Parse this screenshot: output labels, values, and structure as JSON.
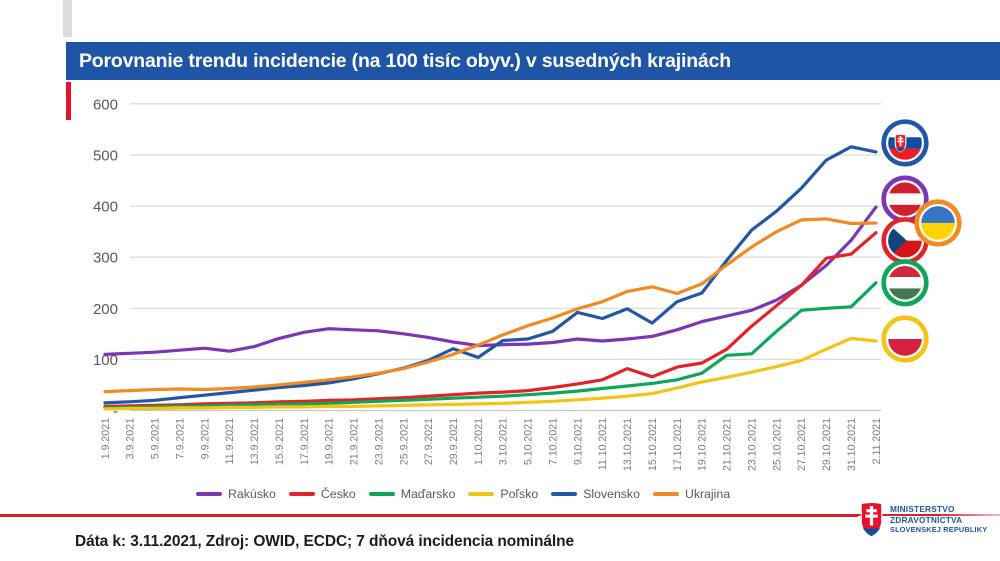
{
  "title": "Porovnanie trendu incidencie (na 100 tisíc obyv.) v susedných krajinách",
  "footer": {
    "source_note": "Dáta k: 3.11.2021, Zdroj: OWID, ECDC; 7 dňová incidencia nominálne"
  },
  "ministry_logo": {
    "line1": "MINISTERSTVO",
    "line2": "ZDRAVOTNÍCTVA",
    "line3": "SLOVENSKEJ REPUBLIKY",
    "emblem": "slovak-coat-of-arms"
  },
  "colors": {
    "title_bar": "#1F55A6",
    "accent_red": "#E8112D",
    "rule_red": "#D8202C",
    "gridline": "#D9D9D9",
    "axis_label": "#595959",
    "xtick_label": "#7F7F7F"
  },
  "chart_data": {
    "type": "line",
    "x": [
      "1.9.2021",
      "3.9.2021",
      "5.9.2021",
      "7.9.2021",
      "9.9.2021",
      "11.9.2021",
      "13.9.2021",
      "15.9.2021",
      "17.9.2021",
      "19.9.2021",
      "21.9.2021",
      "23.9.2021",
      "25.9.2021",
      "27.9.2021",
      "29.9.2021",
      "1.10.2021",
      "3.10.2021",
      "5.10.2021",
      "7.10.2021",
      "9.10.2021",
      "11.10.2021",
      "13.10.2021",
      "15.10.2021",
      "17.10.2021",
      "19.10.2021",
      "21.10.2021",
      "23.10.2021",
      "25.10.2021",
      "27.10.2021",
      "29.10.2021",
      "31.10.2021",
      "2.11.2021"
    ],
    "series": [
      {
        "name": "Rakúsko",
        "color": "#7C35B5",
        "flag": "austria",
        "values": [
          110,
          112,
          114,
          118,
          122,
          116,
          125,
          141,
          153,
          160,
          158,
          156,
          150,
          143,
          134,
          127,
          129,
          130,
          133,
          140,
          136,
          140,
          145,
          158,
          174,
          185,
          196,
          216,
          245,
          284,
          333,
          398
        ]
      },
      {
        "name": "Česko",
        "color": "#E32328",
        "flag": "czechia",
        "values": [
          8,
          9,
          10,
          11,
          13,
          14,
          15,
          17,
          18,
          20,
          21,
          23,
          25,
          28,
          31,
          34,
          36,
          39,
          45,
          52,
          60,
          82,
          66,
          85,
          93,
          120,
          165,
          205,
          245,
          298,
          306,
          348
        ]
      },
      {
        "name": "Maďarsko",
        "color": "#0EA75A",
        "flag": "hungary",
        "values": [
          5,
          6,
          7,
          8,
          9,
          10,
          11,
          12,
          13,
          14,
          16,
          18,
          20,
          22,
          24,
          26,
          28,
          31,
          34,
          38,
          43,
          48,
          53,
          60,
          73,
          108,
          111,
          155,
          196,
          200,
          203,
          250
        ]
      },
      {
        "name": "Poľsko",
        "color": "#F4C414",
        "flag": "poland",
        "values": [
          3,
          4,
          4,
          5,
          5,
          6,
          6,
          7,
          7,
          8,
          8,
          9,
          10,
          11,
          12,
          13,
          14,
          16,
          18,
          21,
          24,
          28,
          33,
          44,
          56,
          65,
          75,
          86,
          98,
          120,
          141,
          136
        ]
      },
      {
        "name": "Slovensko",
        "color": "#2057A7",
        "flag": "slovakia",
        "values": [
          15,
          17,
          20,
          25,
          30,
          35,
          40,
          45,
          49,
          54,
          62,
          72,
          83,
          98,
          121,
          104,
          137,
          140,
          155,
          192,
          180,
          199,
          171,
          213,
          230,
          294,
          353,
          390,
          435,
          490,
          516,
          506
        ]
      },
      {
        "name": "Ukrajina",
        "color": "#F08A21",
        "flag": "ukraine",
        "values": [
          37,
          39,
          41,
          42,
          41,
          43,
          46,
          50,
          55,
          60,
          66,
          73,
          82,
          95,
          110,
          128,
          148,
          166,
          181,
          199,
          213,
          233,
          242,
          229,
          248,
          285,
          320,
          350,
          373,
          375,
          366,
          367
        ]
      }
    ],
    "ylim": [
      0,
      600
    ],
    "yticks": [
      600,
      500,
      400,
      300,
      200,
      100,
      0
    ],
    "ytick_labels": [
      "600",
      "500",
      "400",
      "300",
      "200",
      "100",
      "-"
    ],
    "grid": true,
    "legend_position": "bottom"
  }
}
